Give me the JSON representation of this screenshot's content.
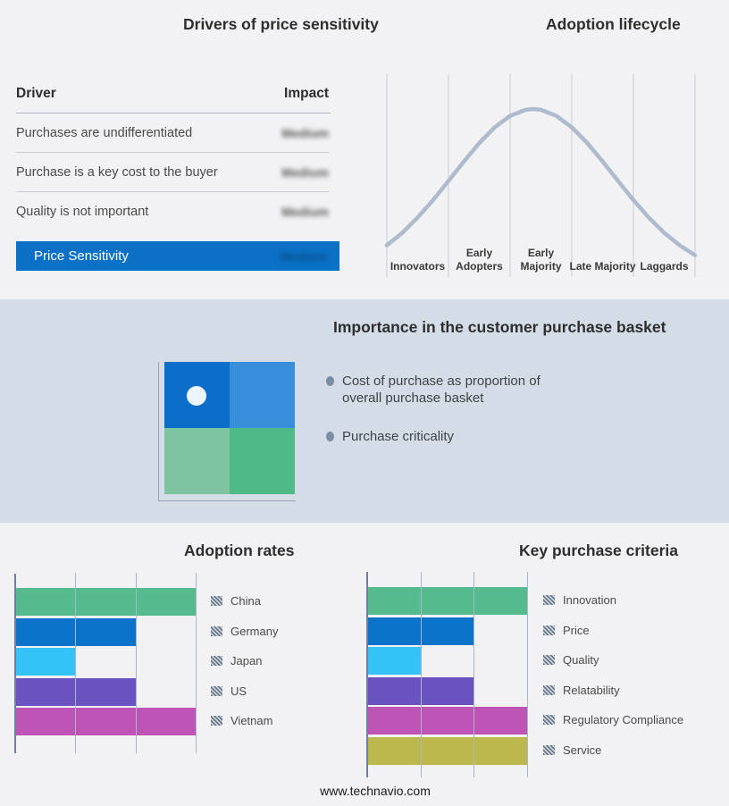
{
  "page": {
    "background": "#f2f2f4",
    "band_background": "#d4dce7",
    "footer": "www.technavio.com"
  },
  "drivers_panel": {
    "title": "Drivers of price sensitivity",
    "col_driver": "Driver",
    "col_impact": "Impact",
    "rows": [
      {
        "driver": "Purchases are undifferentiated",
        "impact": "Medium"
      },
      {
        "driver": "Purchase is a key cost to the buyer",
        "impact": "Medium"
      },
      {
        "driver": "Quality is not important",
        "impact": "Medium"
      }
    ],
    "highlight": {
      "driver": "Price Sensitivity",
      "impact": "Medium",
      "bg": "#0a71c7"
    }
  },
  "lifecycle": {
    "title": "Adoption lifecycle",
    "curve_color": "#aebace",
    "grid_color": "#c5cdd9"
  },
  "basket": {
    "title": "Importance in the customer purchase basket",
    "bullets": [
      "Cost of purchase as proportion of\noverall purchase basket",
      "Purchase criticality"
    ],
    "quadrant_colors": [
      "#0b6ec9",
      "#398ed9",
      "#7dc5a1",
      "#4eba87"
    ],
    "dot_color": "#ecf5fb"
  },
  "chart_data": [
    {
      "type": "table",
      "title": "Drivers of price sensitivity",
      "columns": [
        "Driver",
        "Impact"
      ],
      "rows": [
        [
          "Purchases are undifferentiated",
          "Medium"
        ],
        [
          "Purchase is a key cost to the buyer",
          "Medium"
        ],
        [
          "Quality is not important",
          "Medium"
        ],
        [
          "Price Sensitivity",
          "Medium"
        ]
      ],
      "note": "Impact values are shown blurred in the source image; last row is highlighted blue."
    },
    {
      "type": "line",
      "title": "Adoption lifecycle",
      "categories": [
        "Innovators",
        "Early Adopters",
        "Early Majority",
        "Late Majority",
        "Laggards"
      ],
      "description": "Bell-shaped adoption curve peaking near the Early Majority stage; no numeric axes shown.",
      "grid": true,
      "legend": false,
      "curve_points": [
        [
          0,
          0.189
        ],
        [
          0.05,
          0.263
        ],
        [
          0.1,
          0.354
        ],
        [
          0.15,
          0.458
        ],
        [
          0.2,
          0.572
        ],
        [
          0.25,
          0.688
        ],
        [
          0.3,
          0.798
        ],
        [
          0.35,
          0.891
        ],
        [
          0.4,
          0.959
        ],
        [
          0.45,
          0.995
        ],
        [
          0.475,
          1.0
        ],
        [
          0.5,
          0.995
        ],
        [
          0.55,
          0.959
        ],
        [
          0.6,
          0.891
        ],
        [
          0.65,
          0.798
        ],
        [
          0.7,
          0.688
        ],
        [
          0.75,
          0.572
        ],
        [
          0.8,
          0.458
        ],
        [
          0.85,
          0.353
        ],
        [
          0.9,
          0.263
        ],
        [
          0.95,
          0.189
        ],
        [
          1,
          0.13
        ]
      ]
    },
    {
      "type": "bar",
      "title": "Adoption rates",
      "orientation": "horizontal",
      "categories": [
        "China",
        "Germany",
        "Japan",
        "US",
        "Vietnam"
      ],
      "values": [
        1.0,
        0.667,
        0.333,
        0.667,
        1.0
      ],
      "xlim": [
        0,
        1
      ],
      "colors": [
        "#55bb8e",
        "#0b73c9",
        "#35c2f7",
        "#6a52c0",
        "#bd54b6"
      ],
      "grid": true,
      "legend_position": "right",
      "note": "No numeric axis labels shown; gridlines at thirds of axis."
    },
    {
      "type": "bar",
      "title": "Key purchase criteria",
      "orientation": "horizontal",
      "categories": [
        "Innovation",
        "Price",
        "Quality",
        "Relatability",
        "Regulatory Compliance",
        "Service"
      ],
      "values": [
        1.0,
        0.667,
        0.333,
        0.667,
        1.0,
        1.0
      ],
      "xlim": [
        0,
        1
      ],
      "colors": [
        "#55bb8e",
        "#0b73c9",
        "#35c2f7",
        "#6a52c0",
        "#bd54b6",
        "#bcb84e"
      ],
      "grid": true,
      "legend_position": "right",
      "note": "No numeric axis labels shown; gridlines at thirds of axis."
    }
  ]
}
